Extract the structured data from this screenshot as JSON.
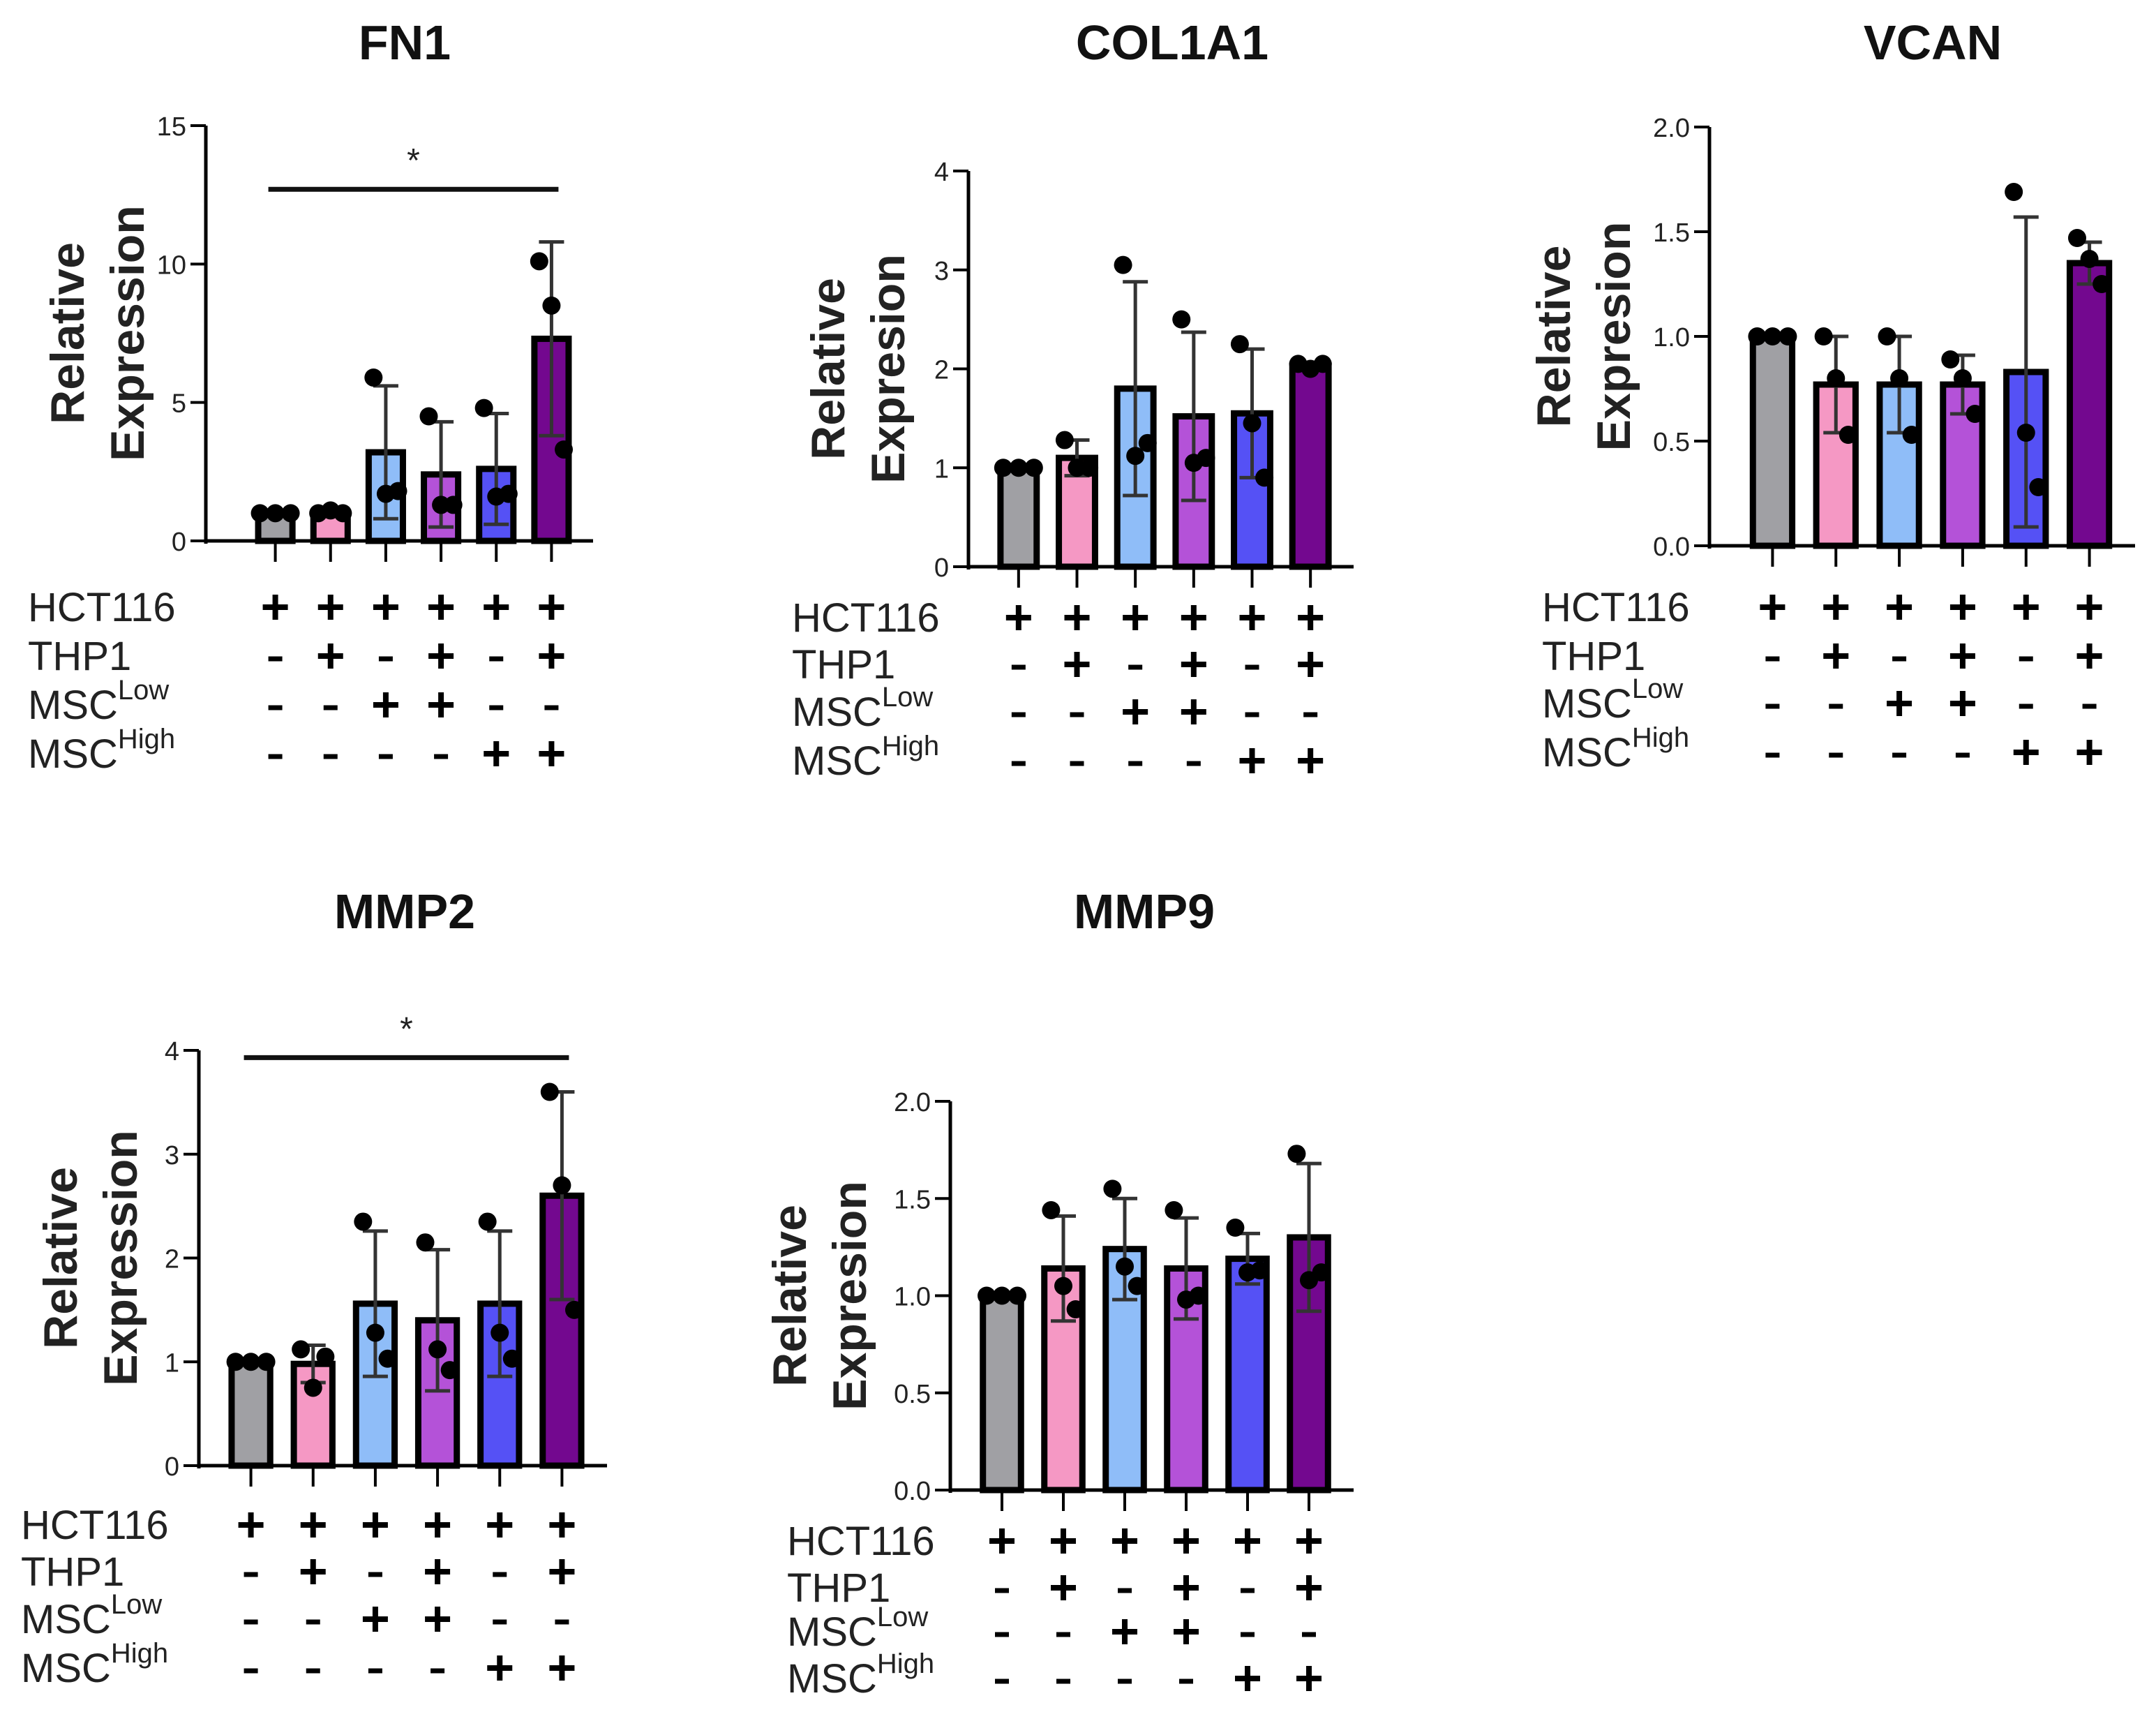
{
  "colors": [
    "#a0a0a4",
    "#f598c4",
    "#8fbdf8",
    "#b452d8",
    "#5551f5",
    "#73088f"
  ],
  "condition_rows": [
    {
      "label": "HCT116",
      "sup": "",
      "signs": [
        "+",
        "+",
        "+",
        "+",
        "+",
        "+"
      ]
    },
    {
      "label": "THP1",
      "sup": "",
      "signs": [
        "-",
        "+",
        "-",
        "+",
        "-",
        "+"
      ]
    },
    {
      "label": "MSC",
      "sup": "Low",
      "signs": [
        "-",
        "-",
        "+",
        "+",
        "-",
        "-"
      ]
    },
    {
      "label": "MSC",
      "sup": "High",
      "signs": [
        "-",
        "-",
        "-",
        "-",
        "+",
        "+"
      ]
    }
  ],
  "chart_data": [
    {
      "type": "bar",
      "title": "FN1",
      "ylabel": [
        "Relative",
        "Expression"
      ],
      "ylim": [
        0,
        15
      ],
      "yticks": [
        "0",
        "5",
        "10",
        "15"
      ],
      "ytick_values": [
        0,
        5,
        10,
        15
      ],
      "values": [
        1.0,
        1.0,
        3.2,
        2.4,
        2.6,
        7.3
      ],
      "sd": [
        0.05,
        0.1,
        2.4,
        1.9,
        2.0,
        3.5
      ],
      "points": [
        [
          1,
          1,
          1
        ],
        [
          1,
          1.1,
          1
        ],
        [
          5.9,
          1.7,
          1.8
        ],
        [
          4.5,
          1.3,
          1.3
        ],
        [
          4.8,
          1.6,
          1.7
        ],
        [
          10.1,
          8.5,
          3.3
        ]
      ],
      "significance": {
        "from": 0,
        "to": 5,
        "y": 12.7,
        "label": "*"
      }
    },
    {
      "type": "bar",
      "title": "COL1A1",
      "ylabel": [
        "Relative",
        "Expresion"
      ],
      "ylim": [
        0,
        4
      ],
      "yticks": [
        "0",
        "1",
        "2",
        "3",
        "4"
      ],
      "ytick_values": [
        0,
        1,
        2,
        3,
        4
      ],
      "values": [
        1.0,
        1.1,
        1.8,
        1.52,
        1.55,
        2.03
      ],
      "sd": [
        0.02,
        0.18,
        1.08,
        0.85,
        0.65,
        0.03
      ],
      "points": [
        [
          1,
          1,
          1
        ],
        [
          1.28,
          1.0,
          1.0
        ],
        [
          3.05,
          1.12,
          1.25
        ],
        [
          2.5,
          1.05,
          1.1
        ],
        [
          2.25,
          1.45,
          0.9
        ],
        [
          2.05,
          2.0,
          2.05
        ]
      ]
    },
    {
      "type": "bar",
      "title": "VCAN",
      "ylabel": [
        "Relative",
        "Expresion"
      ],
      "ylim": [
        0,
        2
      ],
      "yticks": [
        "0.0",
        "0.5",
        "1.0",
        "1.5",
        "2.0"
      ],
      "ytick_values": [
        0,
        0.5,
        1,
        1.5,
        2
      ],
      "values": [
        1.0,
        0.77,
        0.77,
        0.77,
        0.83,
        1.35
      ],
      "sd": [
        0.01,
        0.23,
        0.23,
        0.14,
        0.74,
        0.1
      ],
      "points": [
        [
          1,
          1,
          1
        ],
        [
          1.0,
          0.8,
          0.53
        ],
        [
          1.0,
          0.8,
          0.53
        ],
        [
          0.89,
          0.8,
          0.63
        ],
        [
          1.69,
          0.54,
          0.28
        ],
        [
          1.47,
          1.37,
          1.25
        ]
      ]
    },
    {
      "type": "bar",
      "title": "MMP2",
      "ylabel": [
        "Relative",
        "Expression"
      ],
      "ylim": [
        0,
        4
      ],
      "yticks": [
        "0",
        "1",
        "2",
        "3",
        "4"
      ],
      "ytick_values": [
        0,
        1,
        2,
        3,
        4
      ],
      "values": [
        1.0,
        0.98,
        1.56,
        1.4,
        1.56,
        2.6
      ],
      "sd": [
        0.02,
        0.18,
        0.7,
        0.68,
        0.7,
        1.0
      ],
      "points": [
        [
          1,
          1,
          1
        ],
        [
          1.12,
          0.75,
          1.05
        ],
        [
          2.35,
          1.28,
          1.03
        ],
        [
          2.15,
          1.12,
          0.92
        ],
        [
          2.35,
          1.28,
          1.03
        ],
        [
          3.6,
          2.7,
          1.5
        ]
      ],
      "significance": {
        "from": 0,
        "to": 5,
        "y": 3.93,
        "label": "*"
      }
    },
    {
      "type": "bar",
      "title": "MMP9",
      "ylabel": [
        "Relative",
        "Expresion"
      ],
      "ylim": [
        0,
        2
      ],
      "yticks": [
        "0.0",
        "0.5",
        "1.0",
        "1.5",
        "2.0"
      ],
      "ytick_values": [
        0,
        0.5,
        1,
        1.5,
        2
      ],
      "values": [
        1.0,
        1.14,
        1.24,
        1.14,
        1.19,
        1.3
      ],
      "sd": [
        0.01,
        0.27,
        0.26,
        0.26,
        0.13,
        0.38
      ],
      "points": [
        [
          1,
          1,
          1
        ],
        [
          1.44,
          1.05,
          0.93
        ],
        [
          1.55,
          1.15,
          1.05
        ],
        [
          1.44,
          0.98,
          1.0
        ],
        [
          1.35,
          1.12,
          1.13
        ],
        [
          1.73,
          1.08,
          1.12
        ]
      ]
    }
  ]
}
